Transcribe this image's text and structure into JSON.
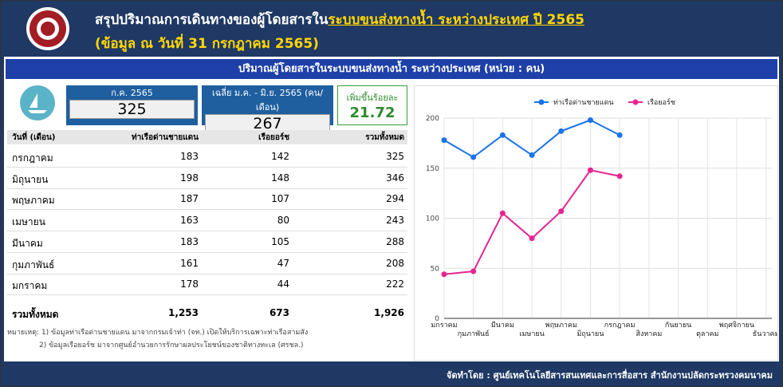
{
  "header": {
    "title": "สรุปปริมาณการเดินทางของผู้โดยสารใน",
    "title_highlight": "ระบบขนส่งทางน้ำ ระหว่างประเทศ ปี 2565",
    "subtitle": "(ข้อมูล ณ วันที่ 31 กรกฎาคม 2565)"
  },
  "banner": "ปริมาณผู้โดยสารในระบบขนส่งทางน้ำ ระหว่างประเทศ (หน่วย : คน)",
  "kpis": [
    {
      "label": "ก.ค. 2565",
      "value": 325
    },
    {
      "label": "เฉลี่ย ม.ค. - มิ.ย. 2565 (คน/เดือน)",
      "value": 267
    },
    {
      "label": "เพิ่มขึ้นร้อยละ",
      "value": 21.72
    }
  ],
  "table": {
    "columns": [
      "วันที่ (เดือน)",
      "ท่าเรือด่านชายแดน",
      "เรือยอร์ช",
      "รวมทั้งหมด"
    ],
    "rows": [
      [
        "กรกฎาคม",
        183,
        142,
        325
      ],
      [
        "มิถุนายน",
        198,
        148,
        346
      ],
      [
        "พฤษภาคม",
        187,
        107,
        294
      ],
      [
        "เมษายน",
        163,
        80,
        243
      ],
      [
        "มีนาคม",
        183,
        105,
        288
      ],
      [
        "กุมภาพันธ์",
        161,
        47,
        208
      ],
      [
        "มกราคม",
        178,
        44,
        222
      ]
    ],
    "total": [
      "รวมทั้งหมด",
      "1,253",
      "673",
      "1,926"
    ]
  },
  "notes": [
    "หมายเหตุ: 1) ข้อมูลท่าเรือด่านชายแดน มาจากกรมเจ้าท่า (จท.) เปิดให้บริการเฉพาะท่าเรือสามสัง",
    "2) ข้อมูลเรือยอร์ช มาจากศูนย์อำนวยการรักษาผลประโยชน์ของชาติทางทะเล (ศรชล.)"
  ],
  "footer": "จัดทำโดย : ศูนย์เทคโนโลยีสารสนเทศและการสื่อสาร สำนักงานปลัดกระทรวงคมนาคม",
  "chart_data": {
    "type": "line",
    "categories": [
      "มกราคม",
      "กุมภาพันธ์",
      "มีนาคม",
      "เมษายน",
      "พฤษภาคม",
      "มิถุนายน",
      "กรกฎาคม",
      "สิงหาคม",
      "กันยายน",
      "ตุลาคม",
      "พฤศจิกายน",
      "ธันวาคม"
    ],
    "series": [
      {
        "name": "ท่าเรือด่านชายแดน",
        "color": "#1a73e8",
        "values": [
          178,
          161,
          183,
          163,
          187,
          198,
          183,
          null,
          null,
          null,
          null,
          null
        ]
      },
      {
        "name": "เรือยอร์ช",
        "color": "#e52592",
        "values": [
          44,
          47,
          105,
          80,
          107,
          148,
          142,
          null,
          null,
          null,
          null,
          null
        ]
      }
    ],
    "ylim": [
      0,
      200
    ],
    "yticks": [
      0,
      50,
      100,
      150,
      200
    ],
    "grid": true,
    "legend": "top"
  }
}
